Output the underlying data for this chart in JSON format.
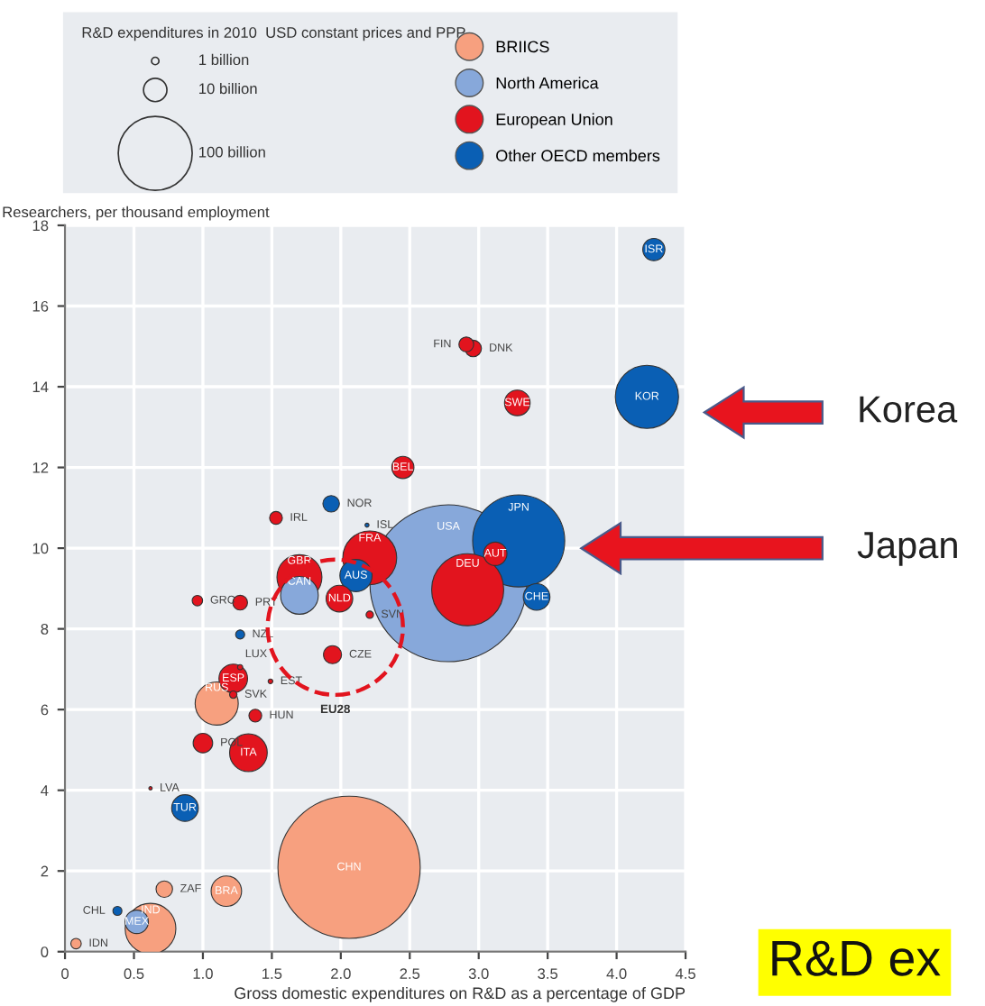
{
  "chart_data": {
    "type": "bubble",
    "xlabel": "Gross domestic expenditures on R&D as a percentage of GDP",
    "ylabel": "Researchers, per thousand employment",
    "legend_title": "R&D expenditures in 2010  USD constant prices and PPP",
    "size_legend": [
      {
        "value": 1,
        "label": "1 billion"
      },
      {
        "value": 10,
        "label": "10 billion"
      },
      {
        "value": 100,
        "label": "100 billion"
      }
    ],
    "xlim": [
      0,
      4.5
    ],
    "ylim": [
      0,
      18
    ],
    "xticks": [
      0,
      0.5,
      {
        "value": 1,
        "label": "1.0"
      },
      1.5,
      {
        "value": 2,
        "label": "2.0"
      },
      2.5,
      {
        "value": 3,
        "label": "3.0"
      },
      3.5,
      {
        "value": 4,
        "label": "4.0"
      },
      4.5
    ],
    "yticks": [
      0,
      2,
      4,
      6,
      8,
      10,
      12,
      14,
      16,
      18
    ],
    "grid": true,
    "legend": "top",
    "series": [
      {
        "name": "BRIICS",
        "color": "#f7a07f",
        "x": [
          1.1,
          2.06,
          0.72,
          1.17,
          0.62,
          0.08
        ],
        "values": [
          6.15,
          2.09,
          1.55,
          1.5,
          0.57,
          0.2
        ],
        "sizes": [
          34,
          370,
          5,
          17,
          47,
          2
        ],
        "value_labels": [
          "RUS",
          "CHN",
          "ZAF",
          "BRA",
          "IND",
          "IDN"
        ]
      },
      {
        "name": "North America",
        "color": "#87a8da",
        "x": [
          2.78,
          1.7,
          0.52
        ],
        "values": [
          9.13,
          8.83,
          0.74
        ],
        "sizes": [
          450,
          26,
          10
        ],
        "value_labels": [
          "USA",
          "CAN",
          "MEX"
        ]
      },
      {
        "name": "European Union",
        "color": "#e2141e",
        "x": [
          2.91,
          2.96,
          3.28,
          2.45,
          1.53,
          2.92,
          3.12,
          2.21,
          1.99,
          1.7,
          2.21,
          1.94,
          0.96,
          1.27,
          1.27,
          1.49,
          1.22,
          1.22,
          1.38,
          1.0,
          1.33,
          0.62
        ],
        "values": [
          15.05,
          14.95,
          13.6,
          12.0,
          10.75,
          8.97,
          9.86,
          9.76,
          8.75,
          9.28,
          8.35,
          7.36,
          8.7,
          8.65,
          7.05,
          6.7,
          6.77,
          6.37,
          5.85,
          5.17,
          4.93,
          4.05
        ],
        "sizes": [
          4,
          5,
          12,
          9,
          3,
          95,
          10,
          53,
          13,
          37,
          1,
          6,
          2,
          4,
          0.5,
          0.4,
          15,
          1,
          3,
          7,
          26,
          0.2
        ],
        "value_labels": [
          "FIN",
          "DNK",
          "SWE",
          "BEL",
          "IRL",
          "DEU",
          "AUT",
          "FRA",
          "NLD",
          "GBR",
          "SVN",
          "CZE",
          "GRC",
          "PRT",
          "LUX",
          "EST",
          "ESP",
          "SVK",
          "HUN",
          "POL",
          "ITA",
          "LVA"
        ]
      },
      {
        "name": "Other OECD members",
        "color": "#0a5fb4",
        "x": [
          4.27,
          4.22,
          1.93,
          3.29,
          3.42,
          2.19,
          2.11,
          1.27,
          0.87,
          0.38
        ],
        "values": [
          17.4,
          13.75,
          11.1,
          10.18,
          8.79,
          10.57,
          9.32,
          7.86,
          3.56,
          1.01
        ],
        "sizes": [
          9,
          73,
          5,
          155,
          13,
          0.3,
          19,
          1.5,
          13,
          1.5
        ],
        "value_labels": [
          "ISR",
          "KOR",
          "NOR",
          "JPN",
          "CHE",
          "ISL",
          "AUS",
          "NZL",
          "TUR",
          "CHL"
        ]
      },
      {
        "color": "#e2141e",
        "line_style": "dashed",
        "x": [
          1.96
        ],
        "values": [
          8.04
        ],
        "sizes": [
          335
        ],
        "value_labels": [
          "EU28"
        ]
      }
    ],
    "annotations": [
      "Korea",
      "Japan",
      "R&D ex"
    ]
  }
}
